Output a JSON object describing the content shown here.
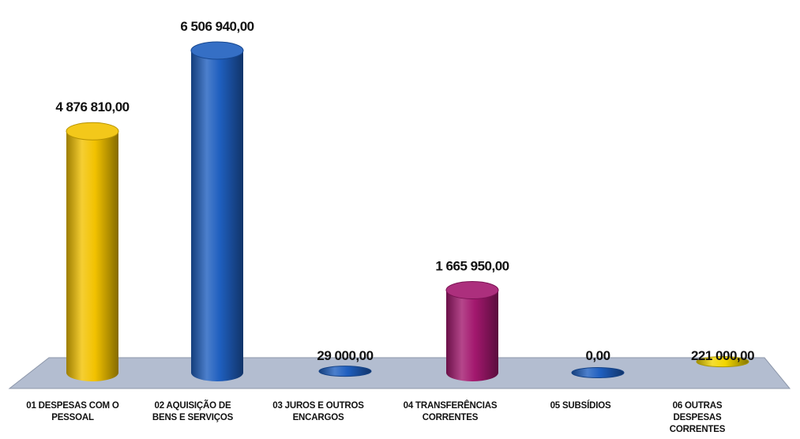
{
  "chart_data": {
    "type": "bar",
    "categories": [
      [
        "01 DESPESAS COM O",
        "PESSOAL"
      ],
      [
        "02 AQUISIÇÃO DE",
        "BENS E SERVIÇOS"
      ],
      [
        "03 JUROS E OUTROS",
        "ENCARGOS"
      ],
      [
        "04 TRANSFERÊNCIAS",
        "CORRENTES"
      ],
      [
        "05 SUBSÍDIOS"
      ],
      [
        "06 OUTRAS",
        "DESPESAS",
        "CORRENTES"
      ]
    ],
    "values": [
      4876810,
      6506940,
      29000,
      1665950,
      0,
      221000
    ],
    "value_labels": [
      "4 876 810,00",
      "6 506 940,00",
      "29 000,00",
      "1 665 950,00",
      "0,00",
      "221 000,00"
    ],
    "colors": [
      "#f2c200",
      "#1f5fbf",
      "#1f5fbf",
      "#a3186e",
      "#1f5fbf",
      "#f2d600"
    ],
    "title": "",
    "xlabel": "",
    "ylabel": "",
    "ylim": [
      0,
      6506940
    ],
    "grid": false,
    "legend": "none"
  }
}
